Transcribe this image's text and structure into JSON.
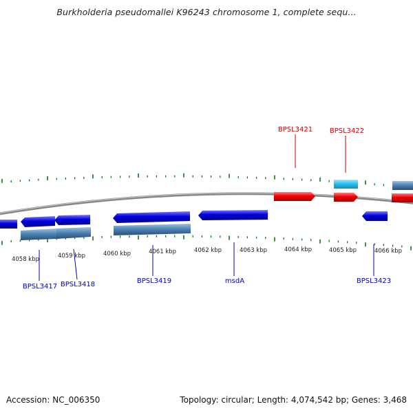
{
  "title": "Burkholderia pseudomallei K96243 chromosome 1, complete sequ...",
  "footer": {
    "accession": "Accession: NC_006350",
    "stats": "Topology: circular; Length: 4,074,542 bp; Genes: 3,468"
  },
  "colors": {
    "forward_gene": "#ee0000",
    "reverse_gene": "#0000dd",
    "cds_track": "#4a7fb0",
    "rna_track": "#22bbee",
    "backbone": "#888888",
    "tick": "#117711",
    "forward_label": "#cc0000",
    "reverse_label": "#0000bb"
  },
  "axis_labels": [
    "4058 kbp",
    "4059 kbp",
    "4060 kbp",
    "4061 kbp",
    "4062 kbp",
    "4063 kbp",
    "4064 kbp",
    "4065 kbp",
    "4066 kbp"
  ],
  "gene_labels": [
    {
      "text": "BPSL3421",
      "strand": "forward"
    },
    {
      "text": "BPSL3422",
      "strand": "forward"
    },
    {
      "text": "BPSL3417",
      "strand": "reverse"
    },
    {
      "text": "BPSL3418",
      "strand": "reverse"
    },
    {
      "text": "BPSL3419",
      "strand": "reverse"
    },
    {
      "text": "msdA",
      "strand": "reverse"
    },
    {
      "text": "BPSL3423",
      "strand": "reverse"
    }
  ]
}
